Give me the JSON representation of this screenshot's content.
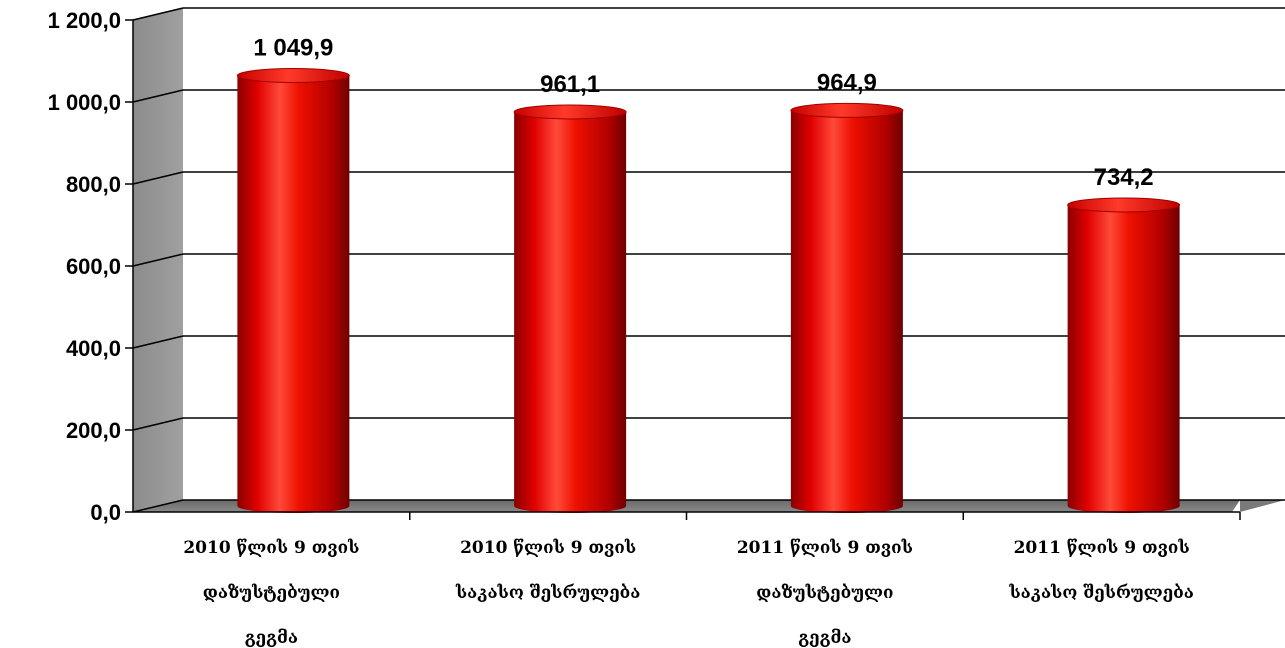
{
  "chart_data": {
    "type": "bar",
    "style": "3d-cylinder",
    "color": "#e00000",
    "categories": [
      [
        "2010 წლის 9 თვის",
        "დაზუსტებული",
        "გეგმა"
      ],
      [
        "2010 წლის 9 თვის",
        "საკასო შესრულება"
      ],
      [
        "2011 წლის 9 თვის",
        "დაზუსტებული",
        "გეგმა"
      ],
      [
        "2011 წლის 9 თვის",
        "საკასო შესრულება"
      ]
    ],
    "values": [
      1049.9,
      961.1,
      964.9,
      734.2
    ],
    "value_labels": [
      "1 049,9",
      "961,1",
      "964,9",
      "734,2"
    ],
    "ylim": [
      0,
      1200
    ],
    "yticks": [
      0,
      200,
      400,
      600,
      800,
      1000,
      1200
    ],
    "ytick_labels": [
      "0,0",
      "200,0",
      "400,0",
      "600,0",
      "800,0",
      "1 000,0",
      "1 200,0"
    ],
    "grid": true,
    "legend": "none"
  }
}
